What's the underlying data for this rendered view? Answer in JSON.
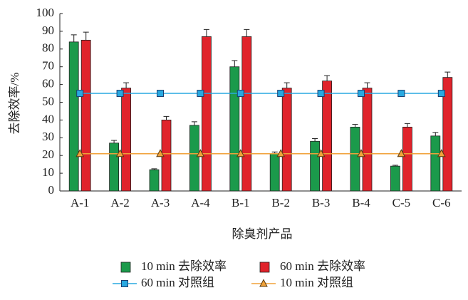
{
  "chart_data": {
    "type": "bar",
    "y_label": "去除效率/%",
    "x_label": "除臭剂产品",
    "categories": [
      "A-1",
      "A-2",
      "A-3",
      "A-4",
      "B-1",
      "B-2",
      "B-3",
      "B-4",
      "C-5",
      "C-6"
    ],
    "series": [
      {
        "name": "10 min 去除效率",
        "color": "#1b9a4b",
        "values": [
          84,
          27,
          12,
          37,
          70,
          21,
          28,
          36,
          14,
          31
        ],
        "errors": [
          4,
          1.5,
          0.5,
          2,
          3.5,
          1,
          1.5,
          1.5,
          0.5,
          2
        ]
      },
      {
        "name": "60 min 去除效率",
        "color": "#e0232b",
        "values": [
          85,
          58,
          40,
          87,
          87,
          58,
          62,
          58,
          36,
          64
        ],
        "errors": [
          4.5,
          3,
          2,
          4,
          4,
          3,
          3,
          3,
          2,
          3
        ]
      },
      {
        "name": "60 min 对照组",
        "type": "line",
        "marker": "square",
        "color": "#29a9e1",
        "values": [
          55,
          55,
          55,
          55,
          55,
          55,
          55,
          55,
          55,
          55
        ]
      },
      {
        "name": "10 min 对照组",
        "type": "line",
        "marker": "triangle",
        "color": "#f0a23a",
        "values": [
          21,
          21,
          21,
          21,
          21,
          21,
          21,
          21,
          21,
          21
        ]
      }
    ],
    "ylim": [
      0,
      100
    ],
    "yticks": [
      0,
      10,
      20,
      30,
      40,
      50,
      60,
      70,
      80,
      90,
      100
    ]
  }
}
